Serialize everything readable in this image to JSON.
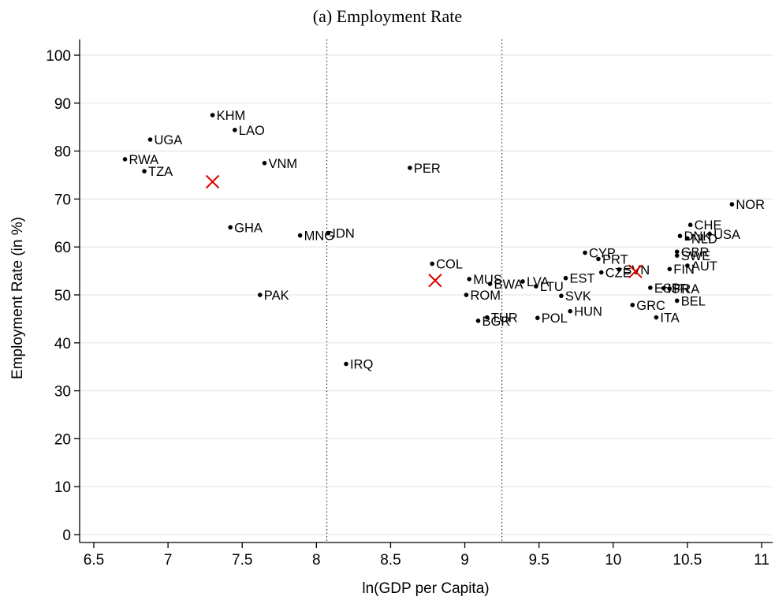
{
  "chart_data": {
    "type": "scatter",
    "title": "(a) Employment Rate",
    "xlabel": "ln(GDP per Capita)",
    "ylabel": "Employment Rate (in %)",
    "xlim": [
      6.5,
      11
    ],
    "ylim": [
      0,
      100
    ],
    "xticks": [
      "6.5",
      "7",
      "7.5",
      "8",
      "8.5",
      "9",
      "9.5",
      "10",
      "10.5",
      "11"
    ],
    "yticks": [
      "0",
      "10",
      "20",
      "30",
      "40",
      "50",
      "60",
      "70",
      "80",
      "90",
      "100"
    ],
    "grid": "horizontal",
    "vlines": [
      8.07,
      9.25
    ],
    "point_color": "#000000",
    "marker_color": "#e00000",
    "points": [
      {
        "label": "KHM",
        "x": 7.3,
        "y": 87.5
      },
      {
        "label": "LAO",
        "x": 7.45,
        "y": 84.4
      },
      {
        "label": "UGA",
        "x": 6.88,
        "y": 82.4
      },
      {
        "label": "RWA",
        "x": 6.71,
        "y": 78.3
      },
      {
        "label": "TZA",
        "x": 6.84,
        "y": 75.8
      },
      {
        "label": "VNM",
        "x": 7.65,
        "y": 77.5
      },
      {
        "label": "PER",
        "x": 8.63,
        "y": 76.5
      },
      {
        "label": "GHA",
        "x": 7.42,
        "y": 64.1
      },
      {
        "label": "MNG",
        "x": 7.89,
        "y": 62.4
      },
      {
        "label": "IDN",
        "x": 8.08,
        "y": 62.9
      },
      {
        "label": "PAK",
        "x": 7.62,
        "y": 50.0
      },
      {
        "label": "IRQ",
        "x": 8.2,
        "y": 35.6
      },
      {
        "label": "COL",
        "x": 8.78,
        "y": 56.5
      },
      {
        "label": "MUS",
        "x": 9.03,
        "y": 53.3
      },
      {
        "label": "BWA",
        "x": 9.17,
        "y": 52.3
      },
      {
        "label": "LVA",
        "x": 9.39,
        "y": 52.8
      },
      {
        "label": "LTU",
        "x": 9.48,
        "y": 51.8
      },
      {
        "label": "ROM",
        "x": 9.01,
        "y": 50.0
      },
      {
        "label": "TUR",
        "x": 9.15,
        "y": 45.3
      },
      {
        "label": "BGR",
        "x": 9.09,
        "y": 44.6
      },
      {
        "label": "POL",
        "x": 9.49,
        "y": 45.2
      },
      {
        "label": "HUN",
        "x": 9.71,
        "y": 46.6
      },
      {
        "label": "SVK",
        "x": 9.65,
        "y": 49.8
      },
      {
        "label": "EST",
        "x": 9.68,
        "y": 53.5
      },
      {
        "label": "CYP",
        "x": 9.81,
        "y": 58.8
      },
      {
        "label": "PRT",
        "x": 9.9,
        "y": 57.5
      },
      {
        "label": "CZE",
        "x": 9.92,
        "y": 54.7
      },
      {
        "label": "SVN",
        "x": 10.04,
        "y": 55.3
      },
      {
        "label": "GRC",
        "x": 10.13,
        "y": 47.9
      },
      {
        "label": "ESP",
        "x": 10.25,
        "y": 51.5
      },
      {
        "label": "ISR",
        "x": 10.34,
        "y": 51.4
      },
      {
        "label": "FRA",
        "x": 10.38,
        "y": 51.3
      },
      {
        "label": "ITA",
        "x": 10.29,
        "y": 45.3
      },
      {
        "label": "BEL",
        "x": 10.43,
        "y": 48.8
      },
      {
        "label": "FIN",
        "x": 10.38,
        "y": 55.4
      },
      {
        "label": "AUT",
        "x": 10.5,
        "y": 56.1
      },
      {
        "label": "GBR",
        "x": 10.43,
        "y": 59.0
      },
      {
        "label": "SWE",
        "x": 10.43,
        "y": 58.2
      },
      {
        "label": "DNK",
        "x": 10.45,
        "y": 62.3
      },
      {
        "label": "NLD",
        "x": 10.5,
        "y": 61.8
      },
      {
        "label": "USA",
        "x": 10.65,
        "y": 62.7
      },
      {
        "label": "CHE",
        "x": 10.52,
        "y": 64.6
      },
      {
        "label": "NOR",
        "x": 10.8,
        "y": 68.9
      }
    ],
    "markers": [
      {
        "x": 7.3,
        "y": 73.6
      },
      {
        "x": 8.8,
        "y": 53.0
      },
      {
        "x": 10.15,
        "y": 54.9
      }
    ]
  }
}
